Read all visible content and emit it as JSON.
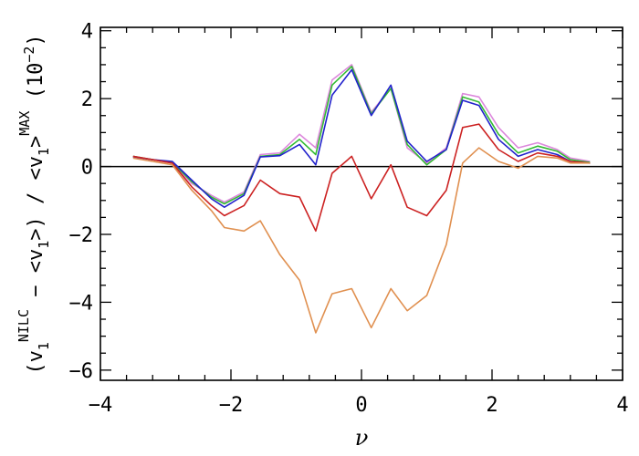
{
  "chart_data": {
    "type": "line",
    "title": "",
    "xlabel": "ν",
    "ylabel_parts": {
      "open": "(v",
      "sub1": "1",
      "sup1": "NILC",
      "mid": " − <v",
      "sub2": "1",
      "after": ">) / <v",
      "sub3": "1",
      "close": ">",
      "sup2": "MAX",
      "scale": " (10",
      "scale_sup": "−2",
      "scale_close": ")"
    },
    "xlim": [
      -4,
      4
    ],
    "ylim": [
      -6.3,
      4.1
    ],
    "xticks": [
      -4,
      -2,
      0,
      2,
      4
    ],
    "xtick_labels": [
      "−4",
      "−2",
      "0",
      "2",
      "4"
    ],
    "yticks": [
      -6,
      -4,
      -2,
      0,
      2,
      4
    ],
    "ytick_labels": [
      "−6",
      "−4",
      "−2",
      "0",
      "2",
      "4"
    ],
    "x_minor_step": 0.4,
    "y_minor_step": 0.5,
    "zero_line": true,
    "grid": false,
    "x": [
      -3.5,
      -3.2,
      -2.9,
      -2.6,
      -2.3,
      -2.1,
      -1.8,
      -1.55,
      -1.25,
      -0.95,
      -0.7,
      -0.45,
      -0.15,
      0.15,
      0.45,
      0.7,
      1.0,
      1.3,
      1.55,
      1.8,
      2.1,
      2.4,
      2.7,
      3.0,
      3.2,
      3.5
    ],
    "series": [
      {
        "color": "#dd88dd",
        "values": [
          0.3,
          0.2,
          0.1,
          -0.5,
          -0.85,
          -1.05,
          -0.75,
          0.35,
          0.4,
          0.95,
          0.55,
          2.55,
          3.0,
          1.6,
          2.3,
          0.55,
          0.1,
          0.55,
          2.15,
          2.05,
          1.15,
          0.55,
          0.7,
          0.5,
          0.25,
          0.15
        ]
      },
      {
        "color": "#33bb33",
        "values": [
          0.3,
          0.2,
          0.12,
          -0.45,
          -0.9,
          -1.1,
          -0.8,
          0.3,
          0.35,
          0.8,
          0.35,
          2.4,
          2.95,
          1.55,
          2.3,
          0.65,
          0.05,
          0.5,
          2.05,
          1.9,
          0.95,
          0.4,
          0.6,
          0.45,
          0.2,
          0.12
        ]
      },
      {
        "color": "#2222cc",
        "values": [
          0.28,
          0.2,
          0.15,
          -0.4,
          -0.95,
          -1.2,
          -0.85,
          0.28,
          0.32,
          0.65,
          0.05,
          2.1,
          2.85,
          1.5,
          2.4,
          0.75,
          0.15,
          0.5,
          1.95,
          1.8,
          0.8,
          0.3,
          0.5,
          0.35,
          0.15,
          0.1
        ]
      },
      {
        "color": "#cc2222",
        "values": [
          0.3,
          0.2,
          0.1,
          -0.6,
          -1.15,
          -1.45,
          -1.15,
          -0.4,
          -0.8,
          -0.9,
          -1.9,
          -0.2,
          0.3,
          -0.95,
          0.05,
          -1.2,
          -1.45,
          -0.7,
          1.15,
          1.25,
          0.5,
          0.15,
          0.4,
          0.3,
          0.15,
          0.1
        ]
      },
      {
        "color": "#e09050",
        "values": [
          0.25,
          0.15,
          0.05,
          -0.7,
          -1.3,
          -1.8,
          -1.9,
          -1.6,
          -2.6,
          -3.35,
          -4.9,
          -3.75,
          -3.6,
          -4.75,
          -3.6,
          -4.25,
          -3.8,
          -2.3,
          0.1,
          0.55,
          0.15,
          -0.05,
          0.3,
          0.25,
          0.1,
          0.1
        ]
      }
    ]
  }
}
